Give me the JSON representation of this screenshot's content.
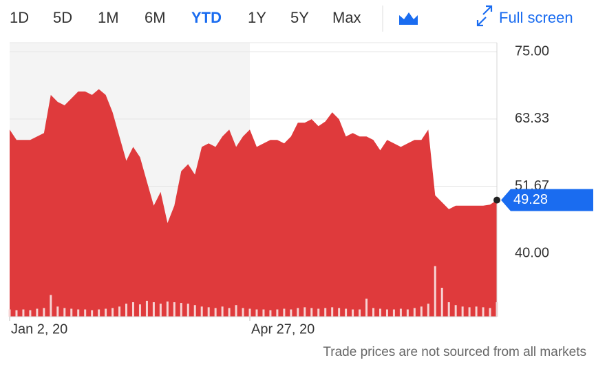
{
  "range_buttons": [
    "1D",
    "5D",
    "1M",
    "6M",
    "YTD",
    "1Y",
    "5Y",
    "Max"
  ],
  "selected_range": "YTD",
  "full_screen_label": "Full screen",
  "note": "Trade prices are not sourced from all markets",
  "chart_data": {
    "type": "area",
    "color": "#df3a3c",
    "categories": [
      "Jan 2, 20",
      null,
      null,
      null,
      null,
      null,
      null,
      null,
      null,
      null,
      null,
      null,
      null,
      null,
      null,
      null,
      null,
      null,
      null,
      null,
      null,
      null,
      null,
      null,
      null,
      null,
      null,
      null,
      null,
      null,
      null,
      null,
      null,
      null,
      null,
      "Apr 27, 20",
      null,
      null,
      null,
      null,
      null,
      null,
      null,
      null,
      null,
      null,
      null,
      null,
      null,
      null,
      null,
      null,
      null,
      null,
      null,
      null,
      null,
      null,
      null,
      null,
      null,
      null,
      null,
      null,
      null,
      null,
      null,
      null,
      null,
      null,
      null,
      null
    ],
    "values": [
      61.5,
      59.7,
      59.7,
      59.7,
      60.3,
      60.9,
      67.5,
      66.3,
      65.7,
      66.9,
      68.1,
      68.1,
      67.5,
      68.5,
      67.5,
      64.5,
      60.3,
      56.1,
      58.5,
      56.7,
      52.5,
      48.3,
      50.7,
      45.3,
      48.3,
      54.3,
      55.5,
      53.7,
      58.5,
      59.1,
      58.5,
      60.3,
      61.5,
      58.5,
      60.3,
      61.5,
      58.5,
      59.1,
      59.7,
      59.7,
      59.1,
      60.3,
      62.7,
      62.7,
      63.3,
      62.1,
      62.9,
      64.5,
      63.3,
      60.3,
      60.9,
      60.3,
      60.3,
      59.7,
      57.9,
      59.7,
      59.1,
      58.5,
      59.1,
      59.7,
      59.7,
      61.5,
      50.1,
      48.9,
      47.7,
      48.3,
      48.3,
      48.3,
      48.3,
      48.3,
      48.5,
      49.28
    ],
    "volume": [
      10,
      9,
      10,
      9,
      11,
      12,
      30,
      14,
      12,
      11,
      10,
      10,
      9,
      10,
      11,
      12,
      14,
      18,
      20,
      17,
      22,
      20,
      18,
      21,
      20,
      19,
      18,
      16,
      14,
      13,
      12,
      14,
      12,
      16,
      12,
      11,
      10,
      10,
      9,
      10,
      11,
      10,
      12,
      13,
      12,
      11,
      12,
      13,
      12,
      11,
      10,
      10,
      25,
      12,
      11,
      10,
      10,
      11,
      10,
      12,
      14,
      18,
      70,
      40,
      20,
      16,
      14,
      13,
      14,
      13,
      12,
      20
    ],
    "current_value": {
      "value": 49.28,
      "label": "49.28"
    },
    "ylim": [
      29.07,
      76.56
    ],
    "yticks": [
      {
        "value": 75,
        "label": "75.00"
      },
      {
        "value": 63.33,
        "label": "63.33"
      },
      {
        "value": 51.67,
        "label": "51.67"
      },
      {
        "value": 40,
        "label": "40.00"
      }
    ],
    "grid": true
  }
}
